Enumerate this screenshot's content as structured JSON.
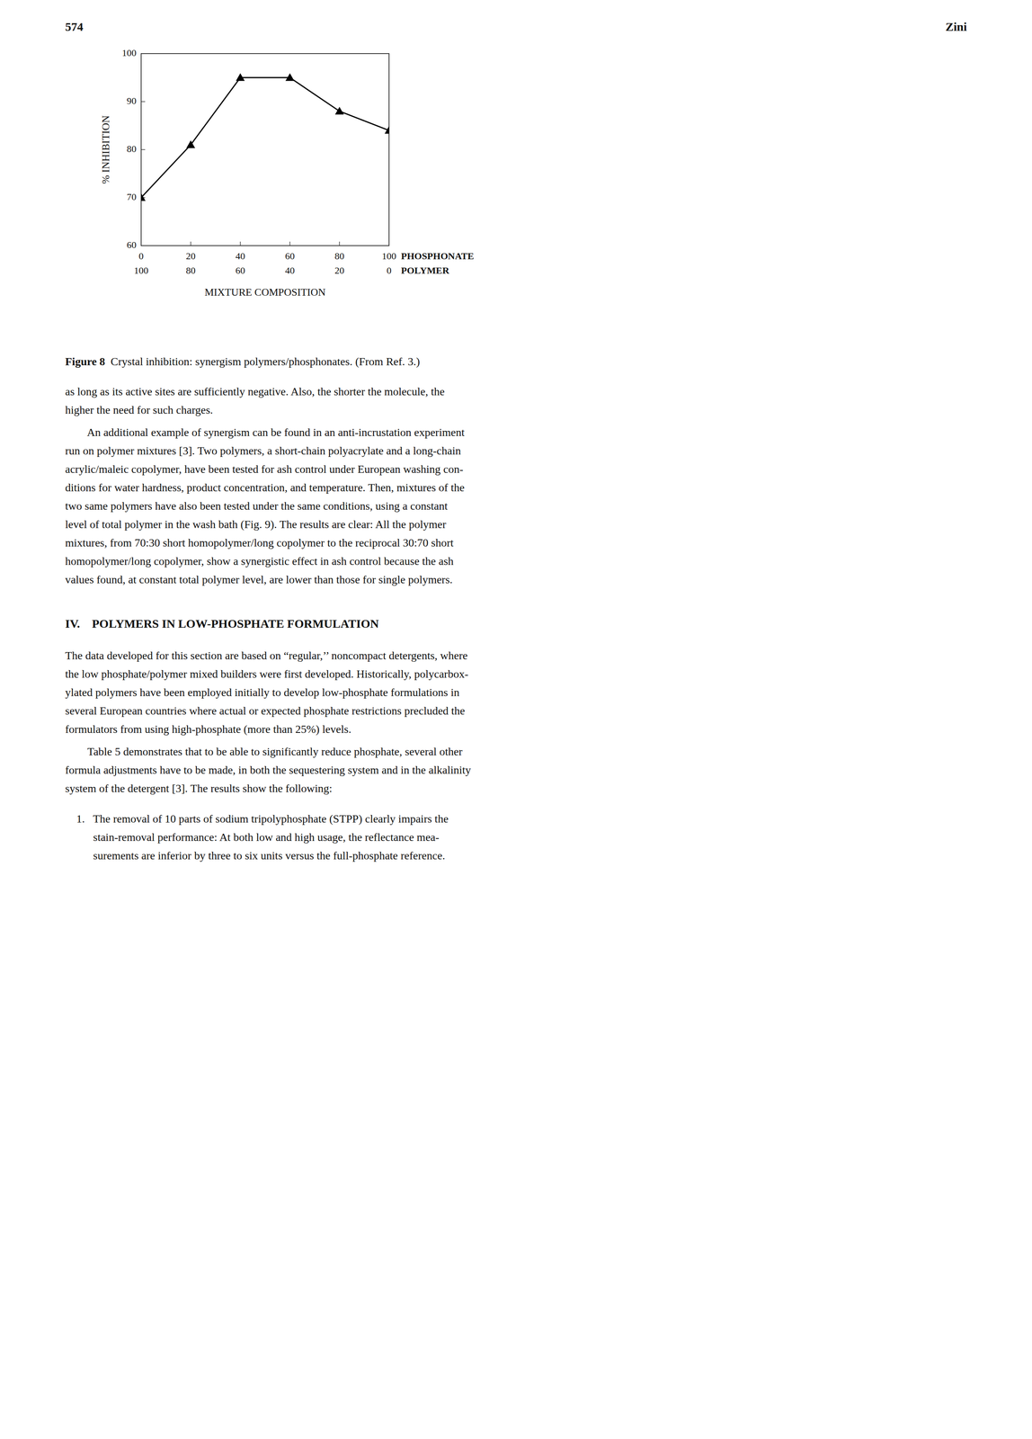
{
  "page_number": "574",
  "right_header": "Zini",
  "caption_bold": "Figure 8",
  "caption": "Crystal inhibition: synergism polymers/phosphonates. (From Ref. 3.)",
  "chart_data": {
    "type": "line",
    "x": [
      0,
      20,
      40,
      60,
      80,
      100
    ],
    "values": [
      70,
      81,
      95,
      95,
      88,
      84
    ],
    "xlim": [
      0,
      100
    ],
    "xticks": [
      0,
      20,
      40,
      60,
      80,
      100
    ],
    "x2lim": [
      100,
      0
    ],
    "x2ticks": [
      100,
      80,
      60,
      40,
      20,
      0
    ],
    "ylim": [
      60,
      100
    ],
    "yticks": [
      60,
      70,
      80,
      90,
      100
    ],
    "x_row_label": "PHOSPHONATE",
    "x2_row_label": "POLYMER",
    "x_label": "MIXTURE COMPOSITION",
    "y_label": "% INHIBITION",
    "marker": "triangle",
    "color": "#000000",
    "grid": false
  },
  "para1_lines": [
    "as long as its active sites are sufficiently negative. Also, the shorter the molecule, the",
    "higher the need for such charges."
  ],
  "para2_lines": [
    "        An additional example of synergism can be found in an anti-incrustation experiment",
    "run on polymer mixtures [3]. Two polymers, a short-chain polyacrylate and a long-chain",
    "acrylic/maleic copolymer, have been tested for ash control under European washing con-",
    "ditions for water hardness, product concentration, and temperature. Then, mixtures of the",
    "two same polymers have also been tested under the same conditions, using a constant",
    "level of total polymer in the wash bath (Fig. 9). The results are clear: All the polymer",
    "mixtures, from 70:30 short homopolymer/long copolymer to the reciprocal 30:70 short",
    "homopolymer/long copolymer, show a synergistic effect in ash control because the ash",
    "values found, at constant total polymer level, are lower than those for single polymers."
  ],
  "section_title": "IV.    POLYMERS IN LOW-PHOSPHATE FORMULATION",
  "sec_para1_lines": [
    "The data developed for this section are based on “regular,’’ noncompact detergents, where",
    "the low phosphate/polymer mixed builders were first developed. Historically, polycarbox-",
    "ylated polymers have been employed initially to develop low-phosphate formulations in",
    "several European countries where actual or expected phosphate restrictions precluded the",
    "formulators from using high-phosphate (more than 25%) levels."
  ],
  "sec_para2_lines": [
    "        Table 5 demonstrates that to be able to significantly reduce phosphate, several other",
    "formula adjustments have to be made, in both the sequestering system and in the alkalinity",
    "system of the detergent [3]. The results show the following:"
  ],
  "list_item_lines": [
    "    1.   The removal of 10 parts of sodium tripolyphosphate (STPP) clearly impairs the",
    "          stain-removal performance: At both low and high usage, the reflectance mea-",
    "          surements are inferior by three to six units versus the full-phosphate reference."
  ]
}
